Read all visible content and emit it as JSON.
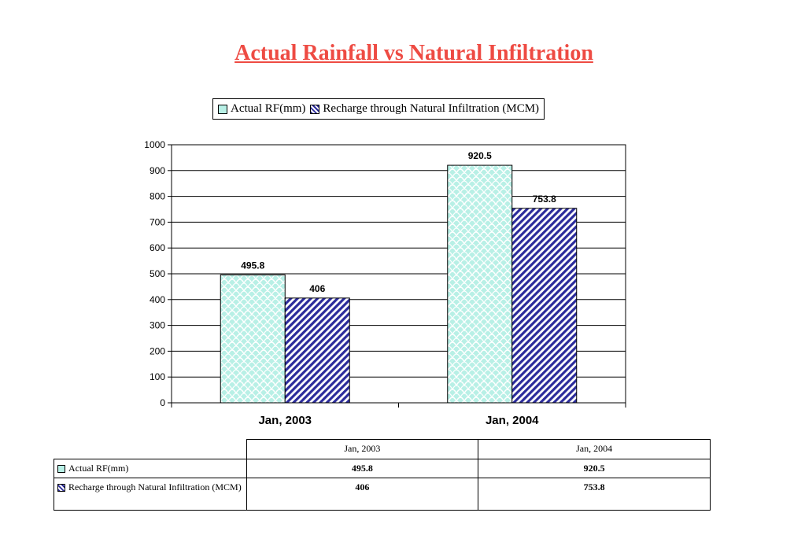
{
  "chart_data": {
    "type": "bar",
    "title": "Actual Rainfall vs Natural Infiltration",
    "categories": [
      "Jan, 2003",
      "Jan, 2004"
    ],
    "series": [
      {
        "name": "Actual RF(mm)",
        "values": [
          495.8,
          920.5
        ],
        "color": "#b8f0e6",
        "value_labels": [
          "495.8",
          "920.5"
        ]
      },
      {
        "name": "Recharge through Natural Infiltration (MCM)",
        "values": [
          406,
          753.8
        ],
        "color": "#2b2b9b",
        "value_labels": [
          "406",
          "753.8"
        ]
      }
    ],
    "ylim": [
      0,
      1000
    ],
    "yticks": [
      0,
      100,
      200,
      300,
      400,
      500,
      600,
      700,
      800,
      900,
      1000
    ],
    "grid": true,
    "legend": "top-center"
  },
  "table": {
    "headers": [
      "Jan, 2003",
      "Jan, 2004"
    ],
    "rows": [
      {
        "label": "Actual RF(mm)",
        "values": [
          "495.8",
          "920.5"
        ]
      },
      {
        "label": "Recharge through Natural Infiltration (MCM)",
        "values": [
          "406",
          "753.8"
        ]
      }
    ]
  }
}
